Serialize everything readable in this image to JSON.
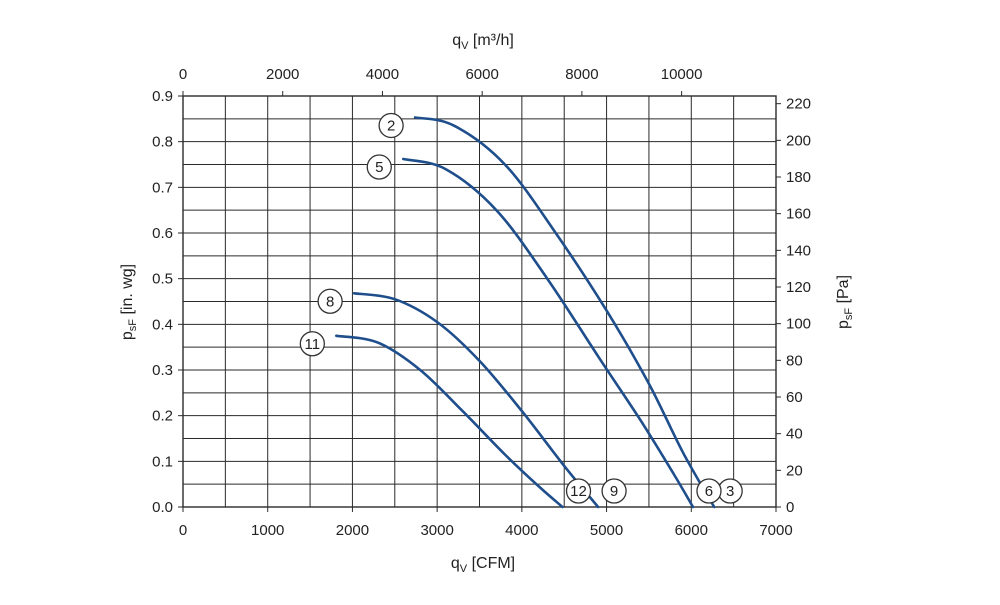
{
  "chart_data": {
    "type": "line",
    "axes": {
      "x_bottom": {
        "label": "q",
        "label_sub": "V",
        "label_unit": " [CFM]",
        "range": [
          0,
          7000
        ],
        "ticks": [
          0,
          1000,
          2000,
          3000,
          4000,
          5000,
          6000,
          7000
        ],
        "tick_labels": [
          "0",
          "1000",
          "2000",
          "3000",
          "4000",
          "5000",
          "6000",
          "7000"
        ]
      },
      "x_top": {
        "label": "q",
        "label_sub": "V",
        "label_unit": " [m³/h]",
        "ticks": [
          0,
          2000,
          4000,
          6000,
          8000,
          10000
        ],
        "tick_labels": [
          "0",
          "2000",
          "4000",
          "6000",
          "8000",
          "10000"
        ]
      },
      "y_left": {
        "label": "p",
        "label_sub": "sF",
        "label_unit": " [in. wg]",
        "range": [
          0,
          0.9
        ],
        "ticks": [
          0,
          0.1,
          0.2,
          0.3,
          0.4,
          0.5,
          0.6,
          0.7,
          0.8,
          0.9
        ],
        "tick_labels": [
          "0.0",
          "0.1",
          "0.2",
          "0.3",
          "0.4",
          "0.5",
          "0.6",
          "0.7",
          "0.8",
          "0.9"
        ]
      },
      "y_right": {
        "label": "p",
        "label_sub": "sF",
        "label_unit": " [Pa]",
        "ticks": [
          0,
          20,
          40,
          60,
          80,
          100,
          120,
          140,
          160,
          180,
          200,
          220
        ],
        "tick_labels": [
          "0",
          "20",
          "40",
          "60",
          "80",
          "100",
          "120",
          "140",
          "160",
          "180",
          "200",
          "220"
        ]
      }
    },
    "grid": true,
    "series": [
      {
        "start_label": "2",
        "end_label": "3",
        "x": [
          2740,
          3200,
          3800,
          4400,
          5000,
          5500,
          5900,
          6270
        ],
        "y": [
          0.853,
          0.835,
          0.75,
          0.6,
          0.43,
          0.27,
          0.12,
          0.0
        ]
      },
      {
        "start_label": "5",
        "end_label": "6",
        "x": [
          2600,
          3100,
          3700,
          4300,
          4900,
          5400,
          5800,
          6020
        ],
        "y": [
          0.762,
          0.74,
          0.65,
          0.5,
          0.33,
          0.19,
          0.07,
          0.0
        ]
      },
      {
        "start_label": "8",
        "end_label": "9",
        "x": [
          2020,
          2500,
          3000,
          3500,
          4000,
          4500,
          4900
        ],
        "y": [
          0.468,
          0.455,
          0.405,
          0.32,
          0.21,
          0.09,
          0.0
        ]
      },
      {
        "start_label": "11",
        "end_label": "12",
        "x": [
          1810,
          2300,
          2800,
          3300,
          3800,
          4200,
          4480
        ],
        "y": [
          0.375,
          0.36,
          0.3,
          0.21,
          0.115,
          0.045,
          0.0
        ]
      }
    ]
  },
  "colors": {
    "curve": "#1f4e8c",
    "grid": "#2a2a2a",
    "text": "#222222"
  }
}
